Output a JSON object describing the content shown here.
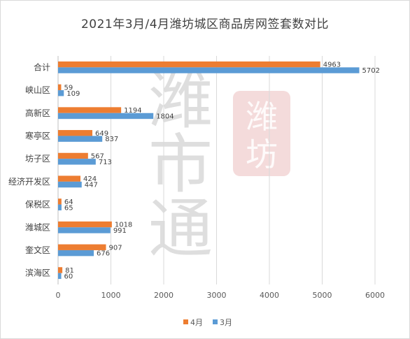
{
  "chart_data": {
    "type": "bar",
    "orientation": "horizontal",
    "title": "2021年3月/4月潍坊城区商品房网签套数对比",
    "categories": [
      "合计",
      "峡山区",
      "高新区",
      "寒亭区",
      "坊子区",
      "经济开发区",
      "保税区",
      "潍城区",
      "奎文区",
      "滨海区"
    ],
    "series": [
      {
        "name": "4月",
        "color": "#ED7D31",
        "values": [
          4963,
          59,
          1194,
          649,
          567,
          424,
          64,
          1018,
          907,
          81
        ]
      },
      {
        "name": "3月",
        "color": "#5B9BD5",
        "values": [
          5702,
          109,
          1804,
          837,
          713,
          447,
          65,
          991,
          676,
          60
        ]
      }
    ],
    "xlim": [
      0,
      6000
    ],
    "xticks": [
      0,
      1000,
      2000,
      3000,
      4000,
      5000,
      6000
    ],
    "grid": true,
    "legend_position": "bottom",
    "data_labels": true
  },
  "watermark": {
    "main_text": "潍市通",
    "seal_text": "潍坊"
  }
}
